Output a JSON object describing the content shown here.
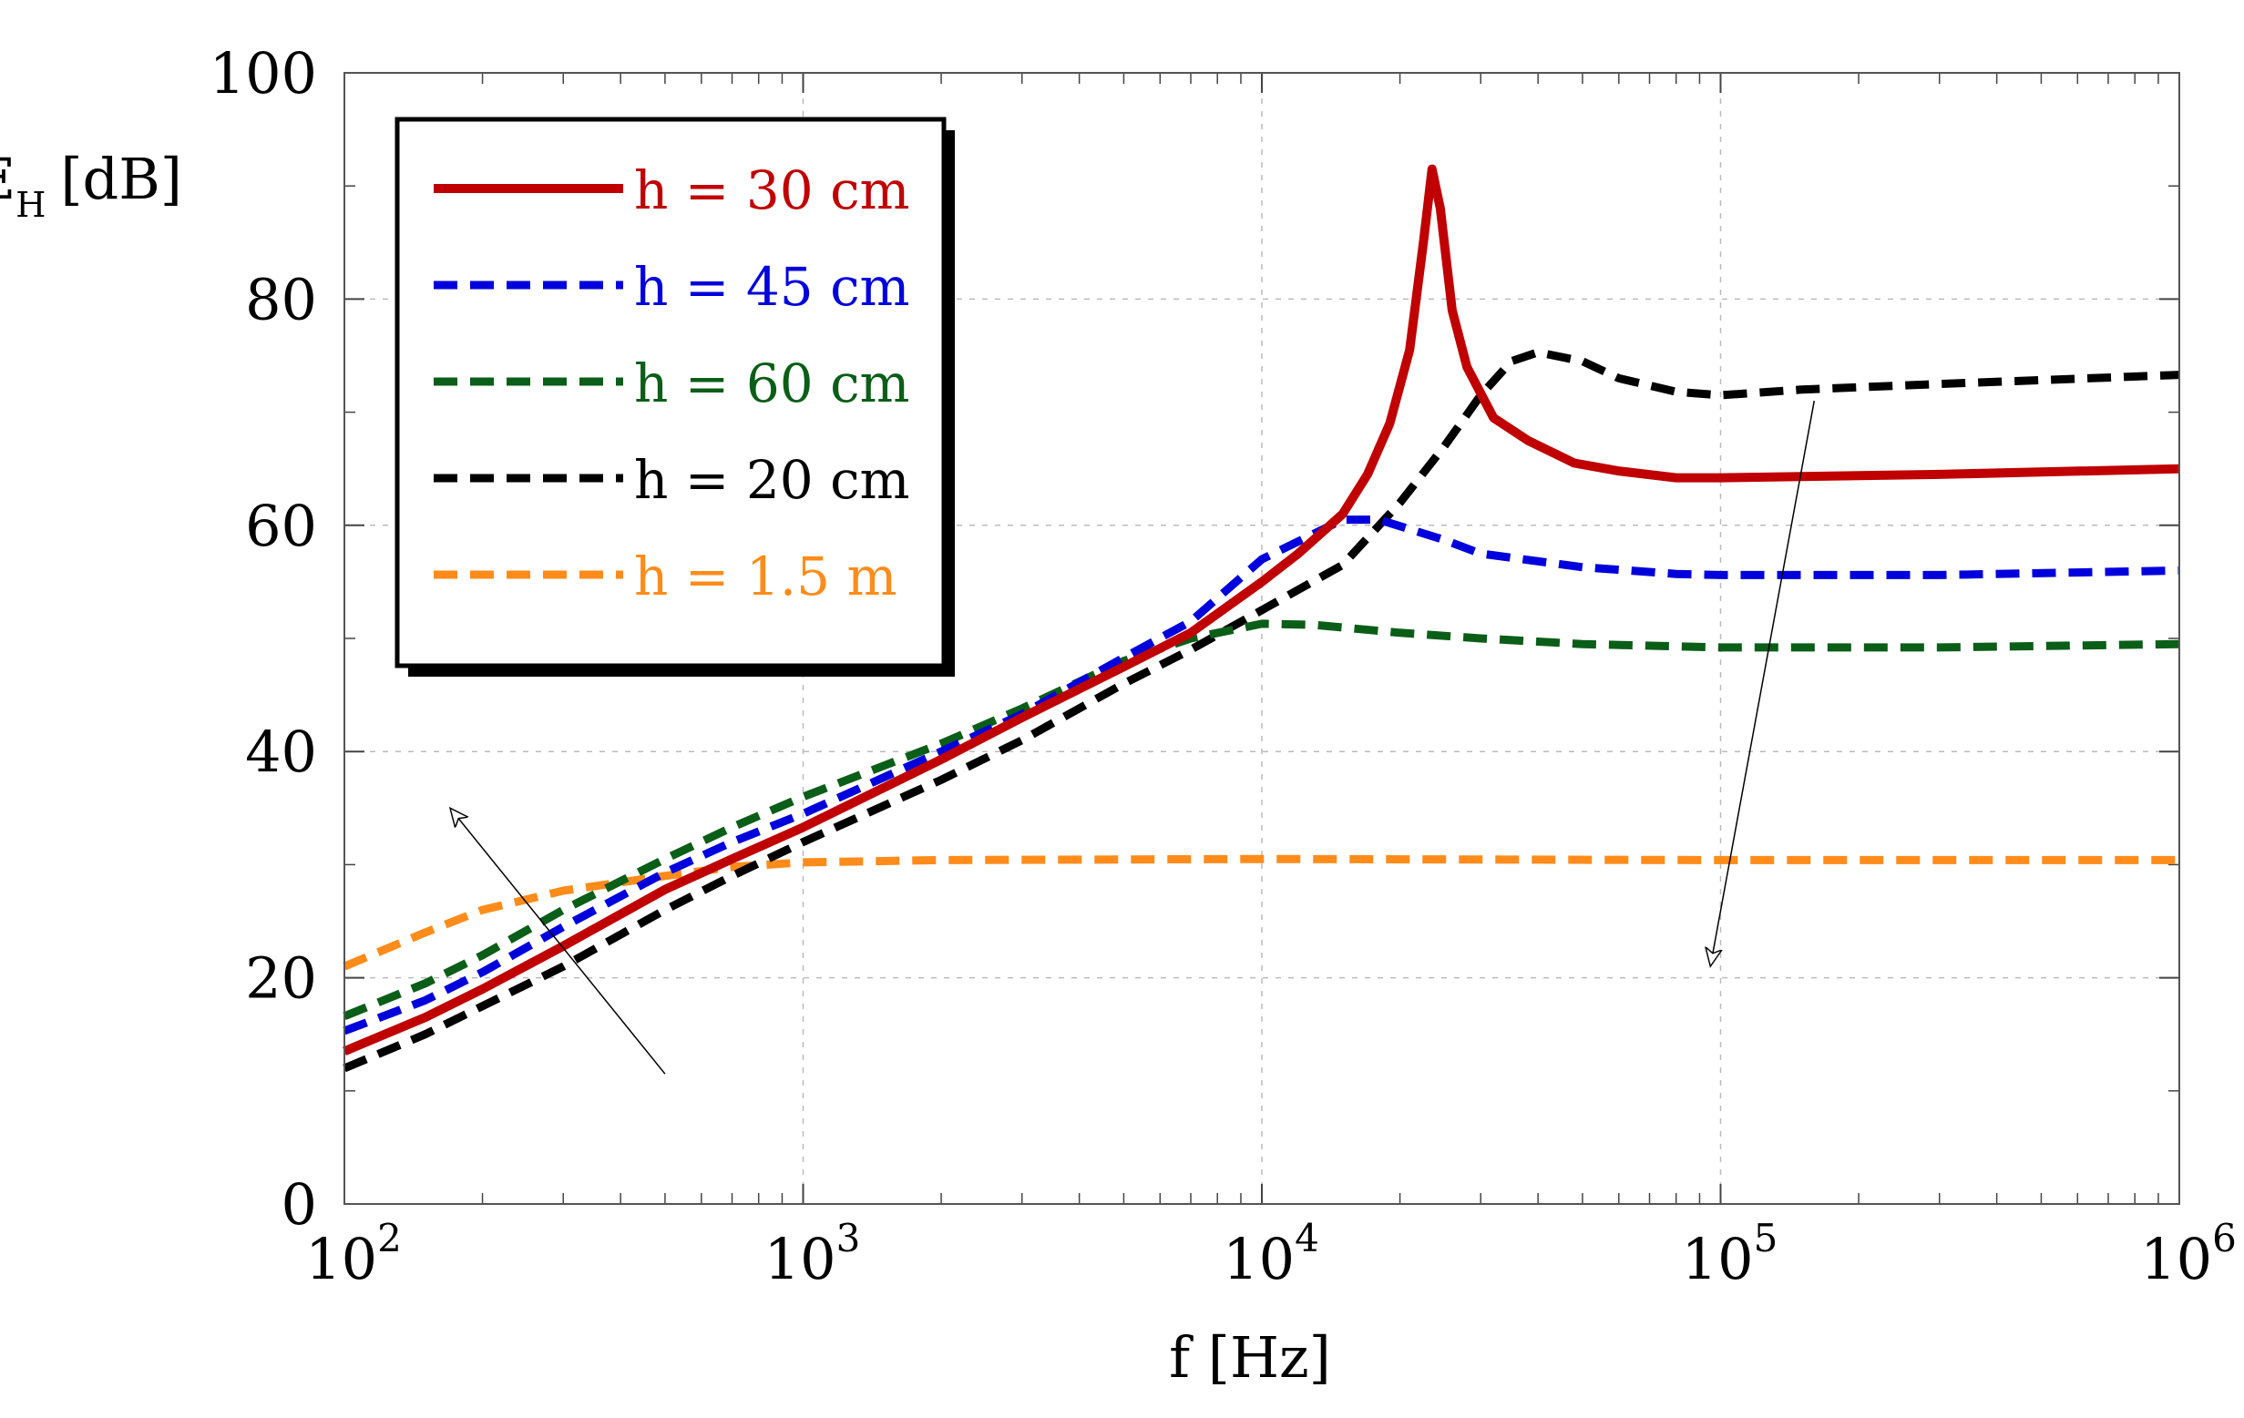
{
  "chart_data": {
    "type": "line",
    "xscale": "log",
    "xlim": [
      100,
      1000000
    ],
    "ylim": [
      0,
      100
    ],
    "grid": true,
    "legend_position": "top-left",
    "xlabel": "f [Hz]",
    "ylabel": {
      "main": "SE",
      "sub": "H",
      "unit": "[dB]"
    },
    "x_ticks": [
      {
        "value": 100,
        "base": "10",
        "exp": "2"
      },
      {
        "value": 1000,
        "base": "10",
        "exp": "3"
      },
      {
        "value": 10000,
        "base": "10",
        "exp": "4"
      },
      {
        "value": 100000,
        "base": "10",
        "exp": "5"
      },
      {
        "value": 1000000,
        "base": "10",
        "exp": "6"
      }
    ],
    "y_ticks": [
      {
        "value": 0,
        "label": "0"
      },
      {
        "value": 20,
        "label": "20"
      },
      {
        "value": 40,
        "label": "40"
      },
      {
        "value": 60,
        "label": "60"
      },
      {
        "value": 80,
        "label": "80"
      },
      {
        "value": 100,
        "label": "100"
      }
    ],
    "series": [
      {
        "name": "h = 30 cm",
        "color": "#c00000",
        "dashed": false,
        "points": [
          [
            100,
            13.5
          ],
          [
            150,
            16.5
          ],
          [
            200,
            19
          ],
          [
            300,
            22.8
          ],
          [
            500,
            27.8
          ],
          [
            700,
            30.5
          ],
          [
            1000,
            33.3
          ],
          [
            2000,
            39.3
          ],
          [
            3000,
            43
          ],
          [
            5000,
            47.5
          ],
          [
            7000,
            50.5
          ],
          [
            10000,
            55
          ],
          [
            12000,
            57.5
          ],
          [
            15000,
            61
          ],
          [
            17000,
            64.5
          ],
          [
            19000,
            69
          ],
          [
            21000,
            75.5
          ],
          [
            22500,
            85
          ],
          [
            23500,
            91.5
          ],
          [
            24500,
            88
          ],
          [
            26000,
            79
          ],
          [
            28000,
            74
          ],
          [
            32000,
            69.5
          ],
          [
            38000,
            67.5
          ],
          [
            48000,
            65.5
          ],
          [
            60000,
            64.8
          ],
          [
            80000,
            64.2
          ],
          [
            100000,
            64.2
          ],
          [
            300000,
            64.5
          ],
          [
            1000000,
            65
          ]
        ]
      },
      {
        "name": "h = 45 cm",
        "color": "#0000dd",
        "dashed": true,
        "points": [
          [
            100,
            15.3
          ],
          [
            150,
            18
          ],
          [
            200,
            20.5
          ],
          [
            300,
            24.5
          ],
          [
            500,
            29.3
          ],
          [
            700,
            32
          ],
          [
            1000,
            34.5
          ],
          [
            2000,
            40
          ],
          [
            3000,
            43.3
          ],
          [
            5000,
            48.3
          ],
          [
            7000,
            51.5
          ],
          [
            10000,
            57
          ],
          [
            15000,
            60.5
          ],
          [
            18000,
            60.5
          ],
          [
            25000,
            58.7
          ],
          [
            30000,
            57.5
          ],
          [
            50000,
            56.3
          ],
          [
            80000,
            55.7
          ],
          [
            100000,
            55.6
          ],
          [
            300000,
            55.6
          ],
          [
            1000000,
            56
          ]
        ]
      },
      {
        "name": "h = 60 cm",
        "color": "#0b5e17",
        "dashed": true,
        "points": [
          [
            100,
            16.6
          ],
          [
            150,
            19.5
          ],
          [
            200,
            22
          ],
          [
            300,
            26
          ],
          [
            500,
            30.5
          ],
          [
            700,
            33.3
          ],
          [
            1000,
            36
          ],
          [
            2000,
            40.7
          ],
          [
            3000,
            43.8
          ],
          [
            5000,
            48
          ],
          [
            7000,
            50
          ],
          [
            10000,
            51.3
          ],
          [
            13000,
            51.2
          ],
          [
            20000,
            50.5
          ],
          [
            30000,
            50
          ],
          [
            50000,
            49.5
          ],
          [
            100000,
            49.2
          ],
          [
            300000,
            49.2
          ],
          [
            1000000,
            49.5
          ]
        ]
      },
      {
        "name": "h = 20 cm",
        "color": "#000000",
        "dashed": true,
        "points": [
          [
            100,
            12
          ],
          [
            150,
            15
          ],
          [
            200,
            17.5
          ],
          [
            300,
            21
          ],
          [
            500,
            26
          ],
          [
            700,
            29
          ],
          [
            1000,
            32
          ],
          [
            2000,
            37.5
          ],
          [
            3000,
            41
          ],
          [
            5000,
            46
          ],
          [
            7000,
            49
          ],
          [
            10000,
            52.5
          ],
          [
            15000,
            56.5
          ],
          [
            20000,
            62
          ],
          [
            25000,
            67
          ],
          [
            30000,
            71.5
          ],
          [
            35000,
            74.5
          ],
          [
            40000,
            75.3
          ],
          [
            50000,
            74.5
          ],
          [
            60000,
            73
          ],
          [
            80000,
            71.8
          ],
          [
            100000,
            71.5
          ],
          [
            150000,
            72
          ],
          [
            300000,
            72.5
          ],
          [
            1000000,
            73.3
          ]
        ]
      },
      {
        "name": "h = 1.5 m",
        "color": "#ff8c1a",
        "dashed": true,
        "points": [
          [
            100,
            21
          ],
          [
            150,
            24
          ],
          [
            200,
            26
          ],
          [
            300,
            27.7
          ],
          [
            500,
            29
          ],
          [
            700,
            29.8
          ],
          [
            1000,
            30.2
          ],
          [
            2000,
            30.4
          ],
          [
            10000,
            30.5
          ],
          [
            100000,
            30.4
          ],
          [
            1000000,
            30.4
          ]
        ]
      }
    ],
    "annotations": [
      {
        "type": "arrow",
        "from": [
          500,
          11.5
        ],
        "to": [
          170,
          35
        ],
        "meaning": "increasing h at low frequency"
      },
      {
        "type": "arrow",
        "from": [
          160000,
          71
        ],
        "to": [
          95000,
          21
        ],
        "meaning": "decreasing h at high frequency"
      }
    ]
  }
}
